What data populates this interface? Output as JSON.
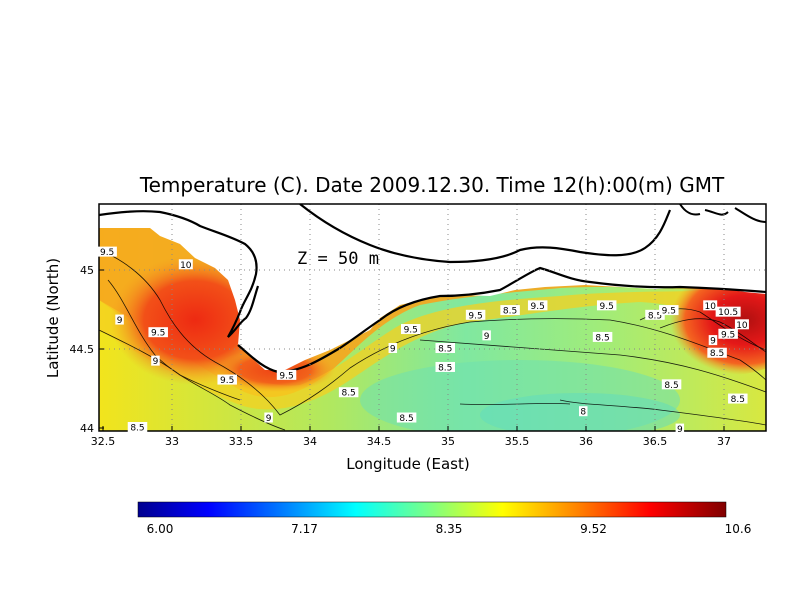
{
  "title": "Temperature (C). Date 2009.12.30. Time 12(h):00(m) GMT",
  "depth_label": "Z  =  50  m",
  "xlabel": "Longitude (East)",
  "ylabel": "Latitude (North)",
  "x_ticks": [
    "32.5",
    "33",
    "33.5",
    "34",
    "34.5",
    "35",
    "35.5",
    "36",
    "36.5",
    "37"
  ],
  "y_ticks": [
    "45",
    "44.5",
    "44"
  ],
  "colorbar": {
    "ticks": [
      "6.00",
      "7.17",
      "8.35",
      "9.52",
      "10.6"
    ],
    "min": 6.0,
    "max": 10.6
  },
  "contour_labels": [
    {
      "text": "9.5",
      "lon": 32.53,
      "lat": 45.11
    },
    {
      "text": "10",
      "lon": 33.1,
      "lat": 45.03
    },
    {
      "text": "9",
      "lon": 32.62,
      "lat": 44.68
    },
    {
      "text": "9.5",
      "lon": 32.9,
      "lat": 44.6
    },
    {
      "text": "9",
      "lon": 32.88,
      "lat": 44.42
    },
    {
      "text": "9.5",
      "lon": 33.4,
      "lat": 44.3
    },
    {
      "text": "9.5",
      "lon": 33.83,
      "lat": 44.33
    },
    {
      "text": "9",
      "lon": 33.7,
      "lat": 44.06
    },
    {
      "text": "8.5",
      "lon": 34.28,
      "lat": 44.22
    },
    {
      "text": "9",
      "lon": 34.6,
      "lat": 44.5
    },
    {
      "text": "9.5",
      "lon": 34.73,
      "lat": 44.62
    },
    {
      "text": "8.5",
      "lon": 34.98,
      "lat": 44.38
    },
    {
      "text": "8.5",
      "lon": 34.98,
      "lat": 44.5
    },
    {
      "text": "8.5",
      "lon": 34.7,
      "lat": 44.06
    },
    {
      "text": "9.5",
      "lon": 35.2,
      "lat": 44.71
    },
    {
      "text": "9",
      "lon": 35.28,
      "lat": 44.58
    },
    {
      "text": "8.5",
      "lon": 35.45,
      "lat": 44.74
    },
    {
      "text": "9.5",
      "lon": 35.65,
      "lat": 44.77
    },
    {
      "text": "9.5",
      "lon": 36.15,
      "lat": 44.77
    },
    {
      "text": "8.5",
      "lon": 36.12,
      "lat": 44.57
    },
    {
      "text": "8",
      "lon": 35.98,
      "lat": 44.1
    },
    {
      "text": "8.5",
      "lon": 36.5,
      "lat": 44.71
    },
    {
      "text": "9.5",
      "lon": 36.6,
      "lat": 44.74
    },
    {
      "text": "10",
      "lon": 36.9,
      "lat": 44.77
    },
    {
      "text": "10.5",
      "lon": 37.03,
      "lat": 44.73
    },
    {
      "text": "10",
      "lon": 37.13,
      "lat": 44.65
    },
    {
      "text": "9",
      "lon": 36.92,
      "lat": 44.55
    },
    {
      "text": "9.5",
      "lon": 37.03,
      "lat": 44.59
    },
    {
      "text": "8.5",
      "lon": 36.95,
      "lat": 44.47
    },
    {
      "text": "8.5",
      "lon": 36.62,
      "lat": 44.27
    },
    {
      "text": "8.5",
      "lon": 37.1,
      "lat": 44.18
    },
    {
      "text": "8.5",
      "lon": 32.75,
      "lat": 44.0
    },
    {
      "text": "9",
      "lon": 36.68,
      "lat": 43.99
    }
  ]
}
